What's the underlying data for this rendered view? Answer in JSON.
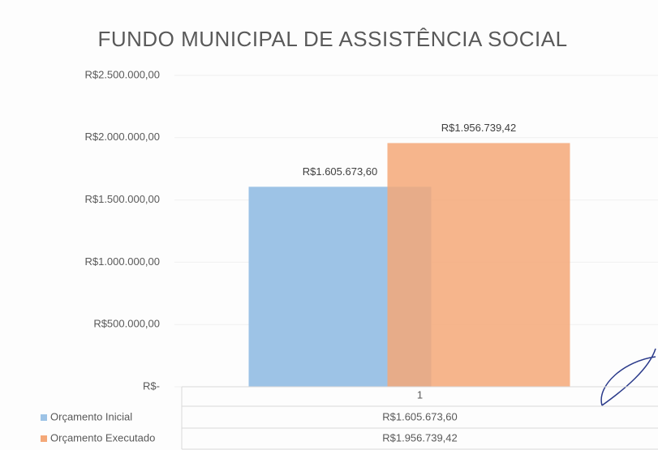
{
  "chart_data": {
    "type": "bar",
    "title": "FUNDO MUNICIPAL DE ASSISTÊNCIA SOCIAL",
    "categories": [
      "1"
    ],
    "series": [
      {
        "name": "Orçamento Inicial",
        "color": "#9dc3e6",
        "values": [
          1605673.6
        ],
        "value_labels": [
          "R$1.605.673,60"
        ]
      },
      {
        "name": "Orçamento Executado",
        "color": "#f4a878",
        "values": [
          1956739.42
        ],
        "value_labels": [
          "R$1.956.739,42"
        ]
      }
    ],
    "ylim": [
      0,
      2500000
    ],
    "yticks": [
      {
        "value": 0,
        "label": "R$-"
      },
      {
        "value": 500000,
        "label": "R$500.000,00"
      },
      {
        "value": 1000000,
        "label": "R$1.000.000,00"
      },
      {
        "value": 1500000,
        "label": "R$1.500.000,00"
      },
      {
        "value": 2000000,
        "label": "R$2.000.000,00"
      },
      {
        "value": 2500000,
        "label": "R$2.500.000,00"
      }
    ],
    "grid": true
  }
}
